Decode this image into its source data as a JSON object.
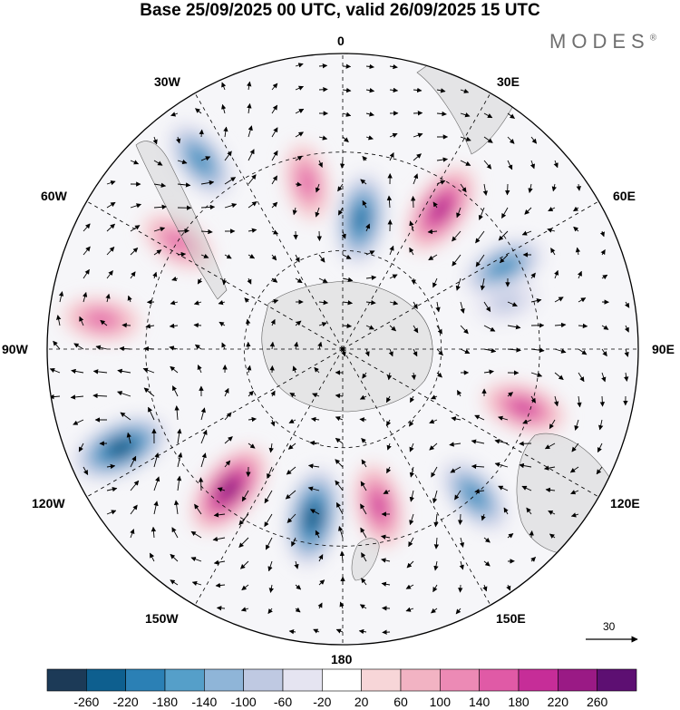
{
  "title": "Base 25/09/2025 00 UTC, valid 26/09/2025 15 UTC",
  "brand": "MODES",
  "brand_mark": "®",
  "longitude_labels": {
    "lon_0": "0",
    "lon_30e": "30E",
    "lon_60e": "60E",
    "lon_90e": "90E",
    "lon_120e": "120E",
    "lon_150e": "150E",
    "lon_180": "180",
    "lon_150w": "150W",
    "lon_120w": "120W",
    "lon_90w": "90W",
    "lon_60w": "60W",
    "lon_30w": "30W"
  },
  "reference_vector": {
    "label": "30"
  },
  "colorbar": {
    "ticks": [
      "-260",
      "-220",
      "-180",
      "-140",
      "-100",
      "-60",
      "-20",
      "20",
      "60",
      "100",
      "140",
      "180",
      "220",
      "260"
    ],
    "colors": [
      "#1c3a57",
      "#0e5f8f",
      "#2b80b5",
      "#559fc9",
      "#8fb5d8",
      "#bfc9e2",
      "#e5e4f1",
      "#ffffff",
      "#f7d6d8",
      "#f2b3c3",
      "#ec8ab5",
      "#e05aa6",
      "#c62d98",
      "#9a1a85",
      "#5d0f72"
    ]
  },
  "anomaly_centers": [
    {
      "kind": "negative",
      "lon_deg": 8,
      "colat_deg": 40,
      "level": -220
    },
    {
      "kind": "positive",
      "lon_deg": 35,
      "colat_deg": 52,
      "level": 240
    },
    {
      "kind": "negative",
      "lon_deg": 63,
      "colat_deg": 55,
      "level": -180
    },
    {
      "kind": "positive",
      "lon_deg": -12,
      "colat_deg": 52,
      "level": 140
    },
    {
      "kind": "negative",
      "lon_deg": -37,
      "colat_deg": 72,
      "level": -180
    },
    {
      "kind": "positive",
      "lon_deg": -57,
      "colat_deg": 60,
      "level": 140
    },
    {
      "kind": "positive",
      "lon_deg": -83,
      "colat_deg": 74,
      "level": 140
    },
    {
      "kind": "negative",
      "lon_deg": -114,
      "colat_deg": 74,
      "level": -260
    },
    {
      "kind": "positive",
      "lon_deg": -141,
      "colat_deg": 55,
      "level": 260
    },
    {
      "kind": "negative",
      "lon_deg": -170,
      "colat_deg": 52,
      "level": -260
    },
    {
      "kind": "positive",
      "lon_deg": -193,
      "colat_deg": 49,
      "level": 180
    },
    {
      "kind": "negative",
      "lon_deg": -222,
      "colat_deg": 60,
      "level": -180
    },
    {
      "kind": "positive",
      "lon_deg": -252,
      "colat_deg": 58,
      "level": 180
    },
    {
      "kind": "negative",
      "lon_deg": -286,
      "colat_deg": 52,
      "level": -60
    }
  ]
}
